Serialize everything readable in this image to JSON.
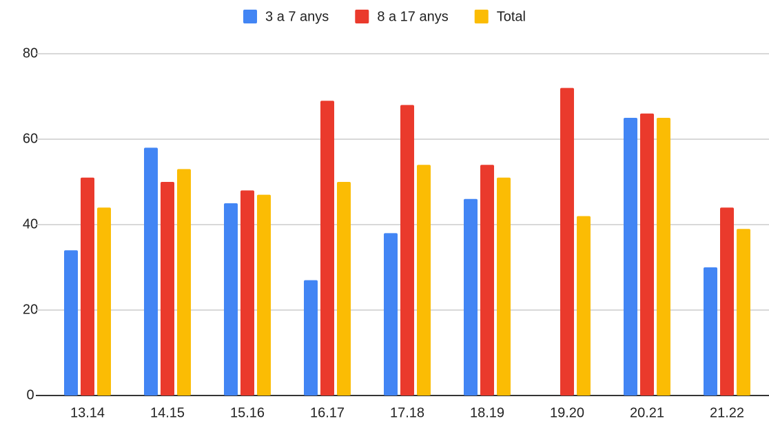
{
  "chart_data": {
    "type": "bar",
    "categories": [
      "13.14",
      "14.15",
      "15.16",
      "16.17",
      "17.18",
      "18.19",
      "19.20",
      "20.21",
      "21.22"
    ],
    "series": [
      {
        "name": "3 a 7 anys",
        "color": "#4285f4",
        "values": [
          34,
          58,
          45,
          27,
          38,
          46,
          null,
          65,
          30
        ]
      },
      {
        "name": "8 a 17 anys",
        "color": "#ea3a2c",
        "values": [
          51,
          50,
          48,
          69,
          68,
          54,
          72,
          66,
          44
        ]
      },
      {
        "name": "Total",
        "color": "#fbbc04",
        "values": [
          44,
          53,
          47,
          50,
          54,
          51,
          42,
          65,
          39
        ]
      }
    ],
    "ylim": [
      0,
      80
    ],
    "yticks": [
      0,
      20,
      40,
      60,
      80
    ],
    "grid": true,
    "legend": "top"
  }
}
